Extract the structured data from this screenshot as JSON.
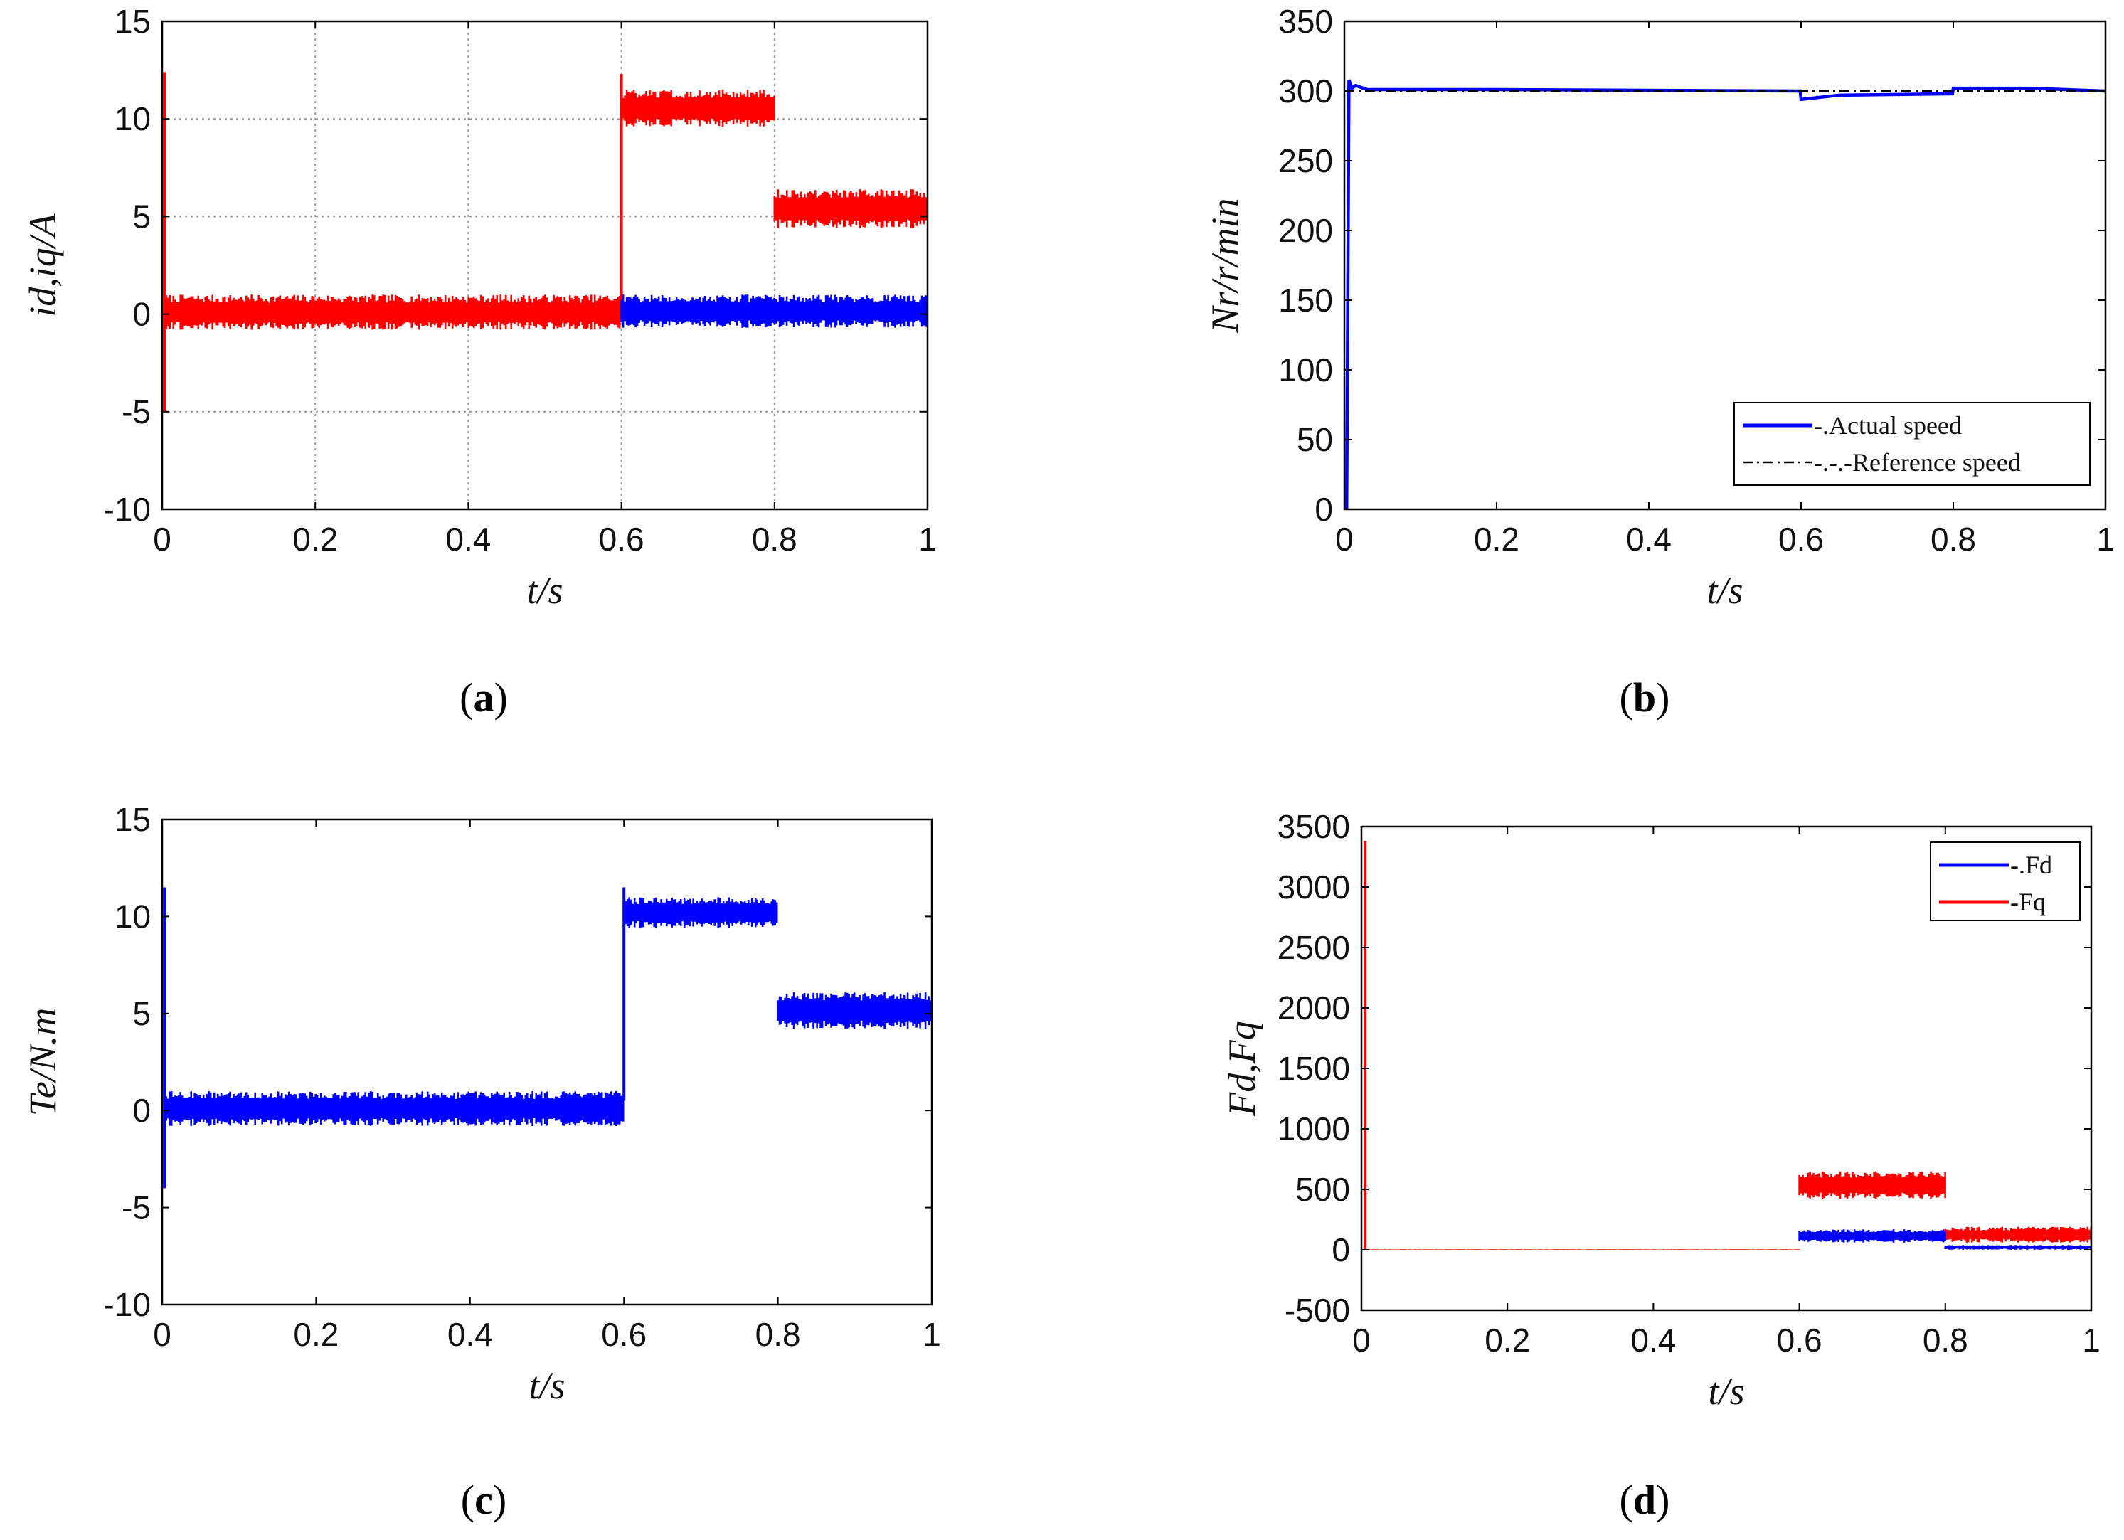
{
  "colors": {
    "red": "#ff0000",
    "blue": "#0000ff",
    "black": "#000000",
    "grid": "#9a9a9a"
  },
  "chart_data": [
    {
      "id": "a",
      "caption": "(a)",
      "caption_letter": "a",
      "type": "line",
      "xlabel": "t/s",
      "ylabel": "id,iq/A",
      "xlim": [
        0,
        1
      ],
      "ylim": [
        -10,
        15
      ],
      "xticks": [
        0,
        0.2,
        0.4,
        0.6,
        0.8,
        1
      ],
      "xtick_labels": [
        "0",
        "0.2",
        "0.4",
        "0.6",
        "0.8",
        "1"
      ],
      "yticks": [
        -10,
        -5,
        0,
        5,
        10,
        15
      ],
      "ytick_labels": [
        "-10",
        "-5",
        "0",
        "5",
        "10",
        "15"
      ],
      "grid": true,
      "legend": null,
      "series": [
        {
          "name": "iq",
          "color": "#ff0000",
          "band": [
            {
              "x0": 0.003,
              "x1": 0.6,
              "lo": -0.8,
              "hi": 1.0
            },
            {
              "x0": 0.6,
              "x1": 0.8,
              "lo": 9.6,
              "hi": 11.5
            },
            {
              "x0": 0.8,
              "x1": 1.0,
              "lo": 4.4,
              "hi": 6.4
            }
          ],
          "spikes": [
            {
              "x": 0.003,
              "from": -5,
              "to": 12.4
            },
            {
              "x": 0.6,
              "from": 0.5,
              "to": 12.3
            }
          ]
        },
        {
          "name": "id",
          "color": "#0000ff",
          "band": [
            {
              "x0": 0.6,
              "x1": 1.0,
              "lo": -0.7,
              "hi": 1.0
            }
          ],
          "spikes": []
        }
      ]
    },
    {
      "id": "b",
      "caption": "(b)",
      "caption_letter": "b",
      "type": "line",
      "xlabel": "t/s",
      "ylabel": "Nr/r/min",
      "xlim": [
        0,
        1
      ],
      "ylim": [
        0,
        350
      ],
      "xticks": [
        0,
        0.2,
        0.4,
        0.6,
        0.8,
        1
      ],
      "xtick_labels": [
        "0",
        "0.2",
        "0.4",
        "0.6",
        "0.8",
        "1"
      ],
      "yticks": [
        0,
        50,
        100,
        150,
        200,
        250,
        300,
        350
      ],
      "ytick_labels": [
        "0",
        "50",
        "100",
        "150",
        "200",
        "250",
        "300",
        "350"
      ],
      "grid": false,
      "legend": {
        "placement": "lower-right",
        "entries": [
          {
            "label": "-.Actual speed",
            "color": "#0000ff",
            "style": "solid"
          },
          {
            "label": "-.-.-Reference speed",
            "color": "#000000",
            "style": "dashdot"
          }
        ]
      },
      "series": [
        {
          "name": "Actual speed",
          "color": "#0000ff",
          "points": [
            [
              0,
              0
            ],
            [
              0.003,
              0
            ],
            [
              0.006,
              308
            ],
            [
              0.01,
              302
            ],
            [
              0.015,
              304
            ],
            [
              0.03,
              301
            ],
            [
              0.2,
              301
            ],
            [
              0.599,
              300
            ],
            [
              0.6,
              294
            ],
            [
              0.65,
              297
            ],
            [
              0.799,
              298
            ],
            [
              0.8,
              302
            ],
            [
              0.9,
              302
            ],
            [
              1.0,
              300
            ]
          ]
        },
        {
          "name": "Reference speed",
          "color": "#000000",
          "points": [
            [
              0,
              300
            ],
            [
              1.0,
              300
            ]
          ]
        }
      ]
    },
    {
      "id": "c",
      "caption": "(c)",
      "caption_letter": "c",
      "type": "line",
      "xlabel": "t/s",
      "ylabel": "Te/N.m",
      "xlim": [
        0,
        1
      ],
      "ylim": [
        -10,
        15
      ],
      "xticks": [
        0,
        0.2,
        0.4,
        0.6,
        0.8,
        1
      ],
      "xtick_labels": [
        "0",
        "0.2",
        "0.4",
        "0.6",
        "0.8",
        "1"
      ],
      "yticks": [
        -10,
        -5,
        0,
        5,
        10,
        15
      ],
      "ytick_labels": [
        "-10",
        "-5",
        "0",
        "5",
        "10",
        "15"
      ],
      "grid": false,
      "legend": null,
      "series": [
        {
          "name": "Te",
          "color": "#0000ff",
          "band": [
            {
              "x0": 0.003,
              "x1": 0.6,
              "lo": -0.8,
              "hi": 1.0
            },
            {
              "x0": 0.6,
              "x1": 0.8,
              "lo": 9.4,
              "hi": 11.0
            },
            {
              "x0": 0.8,
              "x1": 1.0,
              "lo": 4.2,
              "hi": 6.1
            }
          ],
          "spikes": [
            {
              "x": 0.003,
              "from": -4,
              "to": 11.5
            },
            {
              "x": 0.6,
              "from": 0.5,
              "to": 11.5
            }
          ]
        }
      ]
    },
    {
      "id": "d",
      "caption": "(d)",
      "caption_letter": "d",
      "type": "line",
      "xlabel": "t/s",
      "ylabel": "Fd,Fq",
      "xlim": [
        0,
        1
      ],
      "ylim": [
        -500,
        3500
      ],
      "xticks": [
        0,
        0.2,
        0.4,
        0.6,
        0.8,
        1
      ],
      "xtick_labels": [
        "0",
        "0.2",
        "0.4",
        "0.6",
        "0.8",
        "1"
      ],
      "yticks": [
        -500,
        0,
        500,
        1000,
        1500,
        2000,
        2500,
        3000,
        3500
      ],
      "ytick_labels": [
        "-500",
        "0",
        "500",
        "1000",
        "1500",
        "2000",
        "2500",
        "3000",
        "3500"
      ],
      "grid": false,
      "legend": {
        "placement": "top-right",
        "entries": [
          {
            "label": "-.Fd",
            "color": "#0000ff",
            "style": "solid"
          },
          {
            "label": "-Fq",
            "color": "#ff0000",
            "style": "solid"
          }
        ]
      },
      "series": [
        {
          "name": "Fq",
          "color": "#ff0000",
          "band": [
            {
              "x0": 0.005,
              "x1": 0.6,
              "lo": -5,
              "hi": 5
            },
            {
              "x0": 0.6,
              "x1": 0.8,
              "lo": 420,
              "hi": 650
            },
            {
              "x0": 0.8,
              "x1": 1.0,
              "lo": 60,
              "hi": 190
            }
          ],
          "spikes": [
            {
              "x": 0.005,
              "from": 0,
              "to": 3380
            }
          ]
        },
        {
          "name": "Fd",
          "color": "#0000ff",
          "band": [
            {
              "x0": 0.6,
              "x1": 0.8,
              "lo": 60,
              "hi": 170
            },
            {
              "x0": 0.8,
              "x1": 1.0,
              "lo": 0,
              "hi": 40
            }
          ],
          "spikes": []
        }
      ]
    }
  ]
}
